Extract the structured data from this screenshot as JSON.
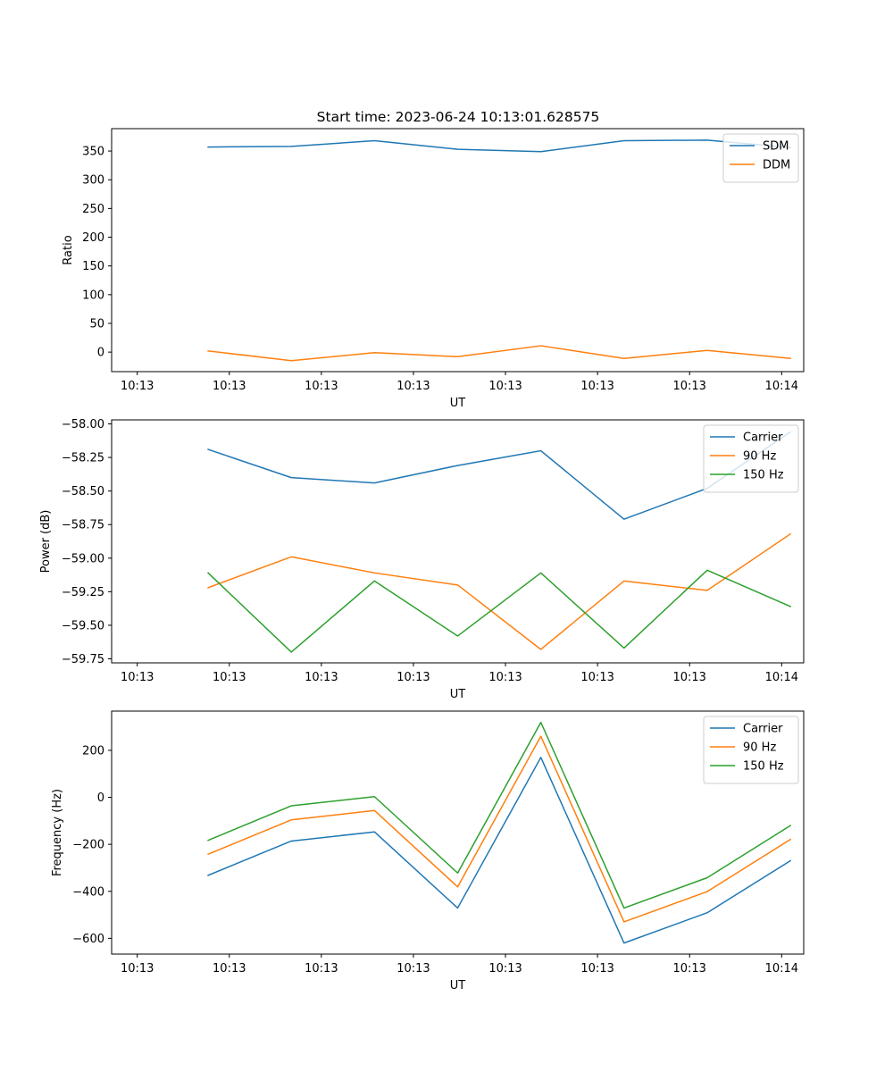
{
  "figure_title": "Start time: 2023-06-24 10:13:01.628575",
  "colors": {
    "blue": "#1f77b4",
    "orange": "#ff7f0e",
    "green": "#2ca02c"
  },
  "chart_data": [
    {
      "type": "line",
      "xlabel": "UT",
      "ylabel": "Ratio",
      "x_tick_labels": [
        "10:13",
        "10:13",
        "10:13",
        "10:13",
        "10:13",
        "10:13",
        "10:13",
        "10:14"
      ],
      "x": [
        1,
        2,
        3,
        4,
        5,
        6,
        7,
        8
      ],
      "y_ticks": [
        0,
        50,
        100,
        150,
        200,
        250,
        300,
        350
      ],
      "y_tick_labels": [
        "0",
        "50",
        "100",
        "150",
        "200",
        "250",
        "300",
        "350"
      ],
      "ylim": [
        -34,
        389
      ],
      "legend_position": "upper right",
      "series": [
        {
          "name": "SDM",
          "color": "#1f77b4",
          "values": [
            357,
            358,
            368,
            353,
            349,
            368,
            369,
            356
          ]
        },
        {
          "name": "DDM",
          "color": "#ff7f0e",
          "values": [
            2,
            -15,
            -1,
            -8,
            11,
            -11,
            3,
            -11
          ]
        }
      ]
    },
    {
      "type": "line",
      "xlabel": "UT",
      "ylabel": "Power (dB)",
      "x_tick_labels": [
        "10:13",
        "10:13",
        "10:13",
        "10:13",
        "10:13",
        "10:13",
        "10:13",
        "10:14"
      ],
      "x": [
        1,
        2,
        3,
        4,
        5,
        6,
        7,
        8
      ],
      "y_ticks": [
        -59.75,
        -59.5,
        -59.25,
        -59.0,
        -58.75,
        -58.5,
        -58.25,
        -58.0
      ],
      "y_tick_labels": [
        "−59.75",
        "−59.50",
        "−59.25",
        "−59.00",
        "−58.75",
        "−58.50",
        "−58.25",
        "−58.00"
      ],
      "ylim": [
        -59.78,
        -57.97
      ],
      "legend_position": "upper right",
      "series": [
        {
          "name": "Carrier",
          "color": "#1f77b4",
          "values": [
            -58.19,
            -58.4,
            -58.44,
            -58.31,
            -58.2,
            -58.71,
            -58.48,
            -58.06
          ]
        },
        {
          "name": "90 Hz",
          "color": "#ff7f0e",
          "values": [
            -59.22,
            -58.99,
            -59.11,
            -59.2,
            -59.68,
            -59.17,
            -59.24,
            -58.82
          ]
        },
        {
          "name": "150 Hz",
          "color": "#2ca02c",
          "values": [
            -59.11,
            -59.7,
            -59.17,
            -59.58,
            -59.11,
            -59.67,
            -59.09,
            -59.36
          ]
        }
      ]
    },
    {
      "type": "line",
      "xlabel": "UT",
      "ylabel": "Frequency (Hz)",
      "x_tick_labels": [
        "10:13",
        "10:13",
        "10:13",
        "10:13",
        "10:13",
        "10:13",
        "10:13",
        "10:14"
      ],
      "x": [
        1,
        2,
        3,
        4,
        5,
        6,
        7,
        8
      ],
      "y_ticks": [
        -600,
        -400,
        -200,
        0,
        200
      ],
      "y_tick_labels": [
        "−600",
        "−400",
        "−200",
        "0",
        "200"
      ],
      "ylim": [
        -667,
        367
      ],
      "legend_position": "upper right",
      "series": [
        {
          "name": "Carrier",
          "color": "#1f77b4",
          "values": [
            -332,
            -186,
            -147,
            -471,
            170,
            -620,
            -491,
            -270
          ]
        },
        {
          "name": "90 Hz",
          "color": "#ff7f0e",
          "values": [
            -242,
            -96,
            -56,
            -381,
            260,
            -530,
            -401,
            -179
          ]
        },
        {
          "name": "150 Hz",
          "color": "#2ca02c",
          "values": [
            -183,
            -36,
            3,
            -322,
            319,
            -471,
            -342,
            -120
          ]
        }
      ]
    }
  ]
}
